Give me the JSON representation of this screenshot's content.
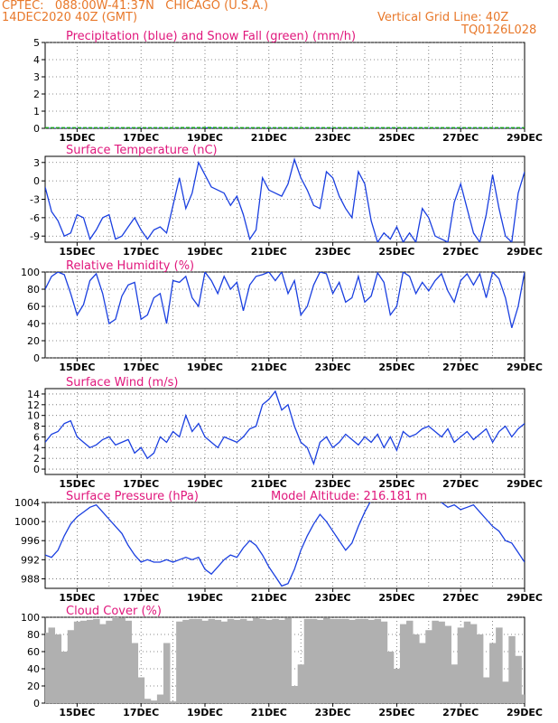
{
  "header": {
    "line1": "CPTEC:   088:00W-41:37N   CHICAGO (U.S.A.)",
    "line2": "14DEC2020 40Z (GMT)",
    "grid_note": "Vertical Grid Line: 40Z",
    "code": "TQ0126L028"
  },
  "x_ticks": [
    "15DEC",
    "17DEC",
    "19DEC",
    "21DEC",
    "23DEC",
    "25DEC",
    "27DEC",
    "29DEC"
  ],
  "colors": {
    "header": "#e8782a",
    "title": "#e0177c",
    "line": "#1a3fe0",
    "snow": "#1aa31a",
    "cloud": "#b0b0b0",
    "axis": "#000000"
  },
  "chart_data": [
    {
      "type": "line",
      "title": "Precipitation (blue) and Snow Fall (green) (mm/h)",
      "ylim": [
        0,
        5
      ],
      "yticks": [
        0,
        1,
        2,
        3,
        4,
        5
      ],
      "series": [
        {
          "name": "Precipitation",
          "color": "#1a3fe0",
          "x": [
            14.0,
            19.0,
            19.1,
            19.3,
            29.0
          ],
          "values": [
            0,
            0,
            0.05,
            0,
            0
          ]
        },
        {
          "name": "Snow Fall",
          "color": "#1aa31a",
          "x": [
            14.0,
            16.0,
            18.0,
            19.2,
            20.0,
            22.0,
            24.0,
            26.0,
            28.0,
            29.0
          ],
          "values": [
            0.02,
            0.02,
            0.02,
            0.03,
            0.02,
            0.02,
            0.02,
            0.02,
            0.02,
            0.02
          ]
        }
      ]
    },
    {
      "type": "line",
      "title": "Surface Temperature (nC)",
      "ylim": [
        -10,
        4
      ],
      "yticks": [
        -9,
        -6,
        -3,
        0,
        3
      ],
      "series": [
        {
          "x": [
            14.0,
            14.2,
            14.4,
            14.6,
            14.8,
            15.0,
            15.2,
            15.4,
            15.6,
            15.8,
            16.0,
            16.2,
            16.4,
            16.6,
            16.8,
            17.0,
            17.2,
            17.4,
            17.6,
            17.8,
            18.0,
            18.2,
            18.4,
            18.6,
            18.8,
            19.0,
            19.2,
            19.4,
            19.6,
            19.8,
            20.0,
            20.2,
            20.4,
            20.6,
            20.8,
            21.0,
            21.2,
            21.4,
            21.6,
            21.8,
            22.0,
            22.2,
            22.4,
            22.6,
            22.8,
            23.0,
            23.2,
            23.4,
            23.6,
            23.8,
            24.0,
            24.2,
            24.4,
            24.6,
            24.8,
            25.0,
            25.2,
            25.4,
            25.6,
            25.8,
            26.0,
            26.2,
            26.4,
            26.6,
            26.8,
            27.0,
            27.2,
            27.4,
            27.6,
            27.8,
            28.0,
            28.2,
            28.4,
            28.6,
            28.8,
            29.0
          ],
          "values": [
            -1.0,
            -5.0,
            -6.5,
            -9.0,
            -8.5,
            -5.5,
            -6.0,
            -9.5,
            -8.0,
            -6.0,
            -5.5,
            -9.5,
            -9.0,
            -7.5,
            -6.0,
            -8.0,
            -9.5,
            -8.0,
            -7.5,
            -8.5,
            -4.0,
            0.5,
            -4.5,
            -2.0,
            3.0,
            1.0,
            -1.0,
            -1.5,
            -2.0,
            -4.0,
            -2.5,
            -5.5,
            -9.5,
            -8.0,
            0.5,
            -1.5,
            -2.0,
            -2.5,
            -0.5,
            3.5,
            0.5,
            -1.5,
            -4.0,
            -4.5,
            1.5,
            0.5,
            -2.5,
            -4.5,
            -6.0,
            1.5,
            -0.5,
            -6.5,
            -10.0,
            -8.5,
            -9.5,
            -7.5,
            -10.0,
            -8.5,
            -10.0,
            -4.5,
            -6.0,
            -9.0,
            -9.5,
            -10.0,
            -3.5,
            -0.5,
            -4.5,
            -8.5,
            -10.0,
            -5.5,
            1.0,
            -4.5,
            -9.0,
            -10.0,
            -2.0,
            1.5
          ]
        }
      ]
    },
    {
      "type": "line",
      "title": "Relative Humidity (%)",
      "ylim": [
        0,
        100
      ],
      "yticks": [
        0,
        20,
        40,
        60,
        80,
        100
      ],
      "series": [
        {
          "x": [
            14.0,
            14.2,
            14.4,
            14.6,
            14.8,
            15.0,
            15.2,
            15.4,
            15.6,
            15.8,
            16.0,
            16.2,
            16.4,
            16.6,
            16.8,
            17.0,
            17.2,
            17.4,
            17.6,
            17.8,
            18.0,
            18.2,
            18.4,
            18.6,
            18.8,
            19.0,
            19.2,
            19.4,
            19.6,
            19.8,
            20.0,
            20.2,
            20.4,
            20.6,
            20.8,
            21.0,
            21.2,
            21.4,
            21.6,
            21.8,
            22.0,
            22.2,
            22.4,
            22.6,
            22.8,
            23.0,
            23.2,
            23.4,
            23.6,
            23.8,
            24.0,
            24.2,
            24.4,
            24.6,
            24.8,
            25.0,
            25.2,
            25.4,
            25.6,
            25.8,
            26.0,
            26.2,
            26.4,
            26.6,
            26.8,
            27.0,
            27.2,
            27.4,
            27.6,
            27.8,
            28.0,
            28.2,
            28.4,
            28.6,
            28.8,
            29.0
          ],
          "values": [
            80,
            95,
            100,
            97,
            75,
            50,
            62,
            90,
            98,
            75,
            40,
            45,
            72,
            85,
            88,
            45,
            50,
            70,
            75,
            40,
            90,
            88,
            95,
            70,
            60,
            100,
            90,
            75,
            95,
            80,
            88,
            55,
            85,
            95,
            97,
            100,
            90,
            100,
            75,
            90,
            50,
            60,
            85,
            100,
            98,
            75,
            88,
            65,
            70,
            95,
            65,
            72,
            99,
            88,
            50,
            60,
            100,
            95,
            75,
            88,
            78,
            90,
            98,
            78,
            65,
            90,
            98,
            85,
            98,
            70,
            100,
            92,
            70,
            35,
            60,
            100
          ]
        }
      ]
    },
    {
      "type": "line",
      "title": "Surface Wind (m/s)",
      "ylim": [
        -1,
        15
      ],
      "yticks": [
        0,
        2,
        4,
        6,
        8,
        10,
        12,
        14
      ],
      "series": [
        {
          "x": [
            14.0,
            14.2,
            14.4,
            14.6,
            14.8,
            15.0,
            15.2,
            15.4,
            15.6,
            15.8,
            16.0,
            16.2,
            16.4,
            16.6,
            16.8,
            17.0,
            17.2,
            17.4,
            17.6,
            17.8,
            18.0,
            18.2,
            18.4,
            18.6,
            18.8,
            19.0,
            19.2,
            19.4,
            19.6,
            19.8,
            20.0,
            20.2,
            20.4,
            20.6,
            20.8,
            21.0,
            21.2,
            21.4,
            21.6,
            21.8,
            22.0,
            22.2,
            22.4,
            22.6,
            22.8,
            23.0,
            23.2,
            23.4,
            23.6,
            23.8,
            24.0,
            24.2,
            24.4,
            24.6,
            24.8,
            25.0,
            25.2,
            25.4,
            25.6,
            25.8,
            26.0,
            26.2,
            26.4,
            26.6,
            26.8,
            27.0,
            27.2,
            27.4,
            27.6,
            27.8,
            28.0,
            28.2,
            28.4,
            28.6,
            28.8,
            29.0
          ],
          "values": [
            5.0,
            6.5,
            7.0,
            8.5,
            9.0,
            6.0,
            5.0,
            4.0,
            4.5,
            5.5,
            6.0,
            4.5,
            5.0,
            5.5,
            3.0,
            4.0,
            2.0,
            3.0,
            6.0,
            5.0,
            7.0,
            6.0,
            10.0,
            7.0,
            8.5,
            6.0,
            5.0,
            4.0,
            6.0,
            5.5,
            5.0,
            6.0,
            7.5,
            8.0,
            12.0,
            13.0,
            14.5,
            11.0,
            12.0,
            8.0,
            5.0,
            4.0,
            1.0,
            5.0,
            6.0,
            4.0,
            5.0,
            6.5,
            5.5,
            4.5,
            6.0,
            5.0,
            6.5,
            4.0,
            6.0,
            3.5,
            7.0,
            6.0,
            6.5,
            7.5,
            8.0,
            7.0,
            6.0,
            7.5,
            5.0,
            6.0,
            7.0,
            5.5,
            6.5,
            7.5,
            5.0,
            7.0,
            8.0,
            6.0,
            7.5,
            8.5
          ]
        }
      ]
    },
    {
      "type": "line",
      "title": "Surface Pressure (hPa)",
      "annotation": "Model Altitude: 216.181 m",
      "ylim": [
        986,
        1004
      ],
      "yticks": [
        988,
        992,
        996,
        1000,
        1004
      ],
      "series": [
        {
          "x": [
            14.0,
            14.2,
            14.4,
            14.6,
            14.8,
            15.0,
            15.2,
            15.4,
            15.6,
            15.8,
            16.0,
            16.2,
            16.4,
            16.6,
            16.8,
            17.0,
            17.2,
            17.4,
            17.6,
            17.8,
            18.0,
            18.2,
            18.4,
            18.6,
            18.8,
            19.0,
            19.2,
            19.4,
            19.6,
            19.8,
            20.0,
            20.2,
            20.4,
            20.6,
            20.8,
            21.0,
            21.2,
            21.4,
            21.6,
            21.8,
            22.0,
            22.2,
            22.4,
            22.6,
            22.8,
            23.0,
            23.2,
            23.4,
            23.6,
            23.8,
            24.0,
            24.2,
            24.4,
            24.6,
            24.8,
            25.0,
            25.2,
            25.4,
            25.6,
            25.8,
            26.0,
            26.2,
            26.4,
            26.6,
            26.8,
            27.0,
            27.2,
            27.4,
            27.6,
            27.8,
            28.0,
            28.2,
            28.4,
            28.6,
            28.8,
            29.0
          ],
          "values": [
            993.0,
            992.5,
            994.0,
            997.0,
            999.5,
            1001.0,
            1002.0,
            1003.0,
            1003.5,
            1002.0,
            1000.5,
            999.0,
            997.5,
            995.0,
            993.0,
            991.5,
            992.0,
            991.5,
            991.5,
            992.0,
            991.5,
            992.0,
            992.5,
            992.0,
            992.5,
            990.0,
            989.0,
            990.5,
            992.0,
            993.0,
            992.5,
            994.5,
            996.0,
            995.0,
            993.0,
            990.5,
            988.5,
            986.5,
            987.0,
            990.0,
            994.0,
            997.0,
            999.5,
            1001.5,
            1000.0,
            998.0,
            996.0,
            994.0,
            995.5,
            999.0,
            1002.0,
            1004.5,
            1005.0,
            1005.0,
            1005.0,
            1005.0,
            1005.0,
            1005.0,
            1005.0,
            1005.0,
            1005.0,
            1005.0,
            1004.0,
            1003.0,
            1003.5,
            1002.5,
            1003.0,
            1003.5,
            1002.0,
            1000.5,
            999.0,
            998.0,
            996.0,
            995.5,
            993.5,
            991.5
          ]
        }
      ]
    },
    {
      "type": "bar",
      "title": "Cloud Cover (%)",
      "ylim": [
        0,
        100
      ],
      "yticks": [
        0,
        20,
        40,
        60,
        80,
        100
      ],
      "x": [
        14.0,
        14.2,
        14.4,
        14.6,
        14.8,
        15.0,
        15.2,
        15.4,
        15.6,
        15.8,
        16.0,
        16.2,
        16.4,
        16.6,
        16.8,
        17.0,
        17.2,
        17.4,
        17.6,
        17.8,
        18.0,
        18.2,
        18.4,
        18.6,
        18.8,
        19.0,
        19.2,
        19.4,
        19.6,
        19.8,
        20.0,
        20.2,
        20.4,
        20.6,
        20.8,
        21.0,
        21.2,
        21.4,
        21.6,
        21.8,
        22.0,
        22.2,
        22.4,
        22.6,
        22.8,
        23.0,
        23.2,
        23.4,
        23.6,
        23.8,
        24.0,
        24.2,
        24.4,
        24.6,
        24.8,
        25.0,
        25.2,
        25.4,
        25.6,
        25.8,
        26.0,
        26.2,
        26.4,
        26.6,
        26.8,
        27.0,
        27.2,
        27.4,
        27.6,
        27.8,
        28.0,
        28.2,
        28.4,
        28.6,
        28.8,
        29.0
      ],
      "values": [
        82,
        88,
        80,
        60,
        85,
        95,
        96,
        97,
        98,
        92,
        96,
        100,
        99,
        96,
        70,
        30,
        5,
        3,
        10,
        70,
        2,
        95,
        97,
        98,
        98,
        96,
        98,
        97,
        95,
        98,
        97,
        98,
        96,
        99,
        98,
        97,
        98,
        97,
        99,
        20,
        45,
        98,
        98,
        97,
        99,
        98,
        98,
        98,
        97,
        98,
        98,
        97,
        98,
        95,
        60,
        40,
        92,
        96,
        80,
        70,
        85,
        96,
        95,
        90,
        45,
        88,
        95,
        92,
        80,
        30,
        70,
        88,
        25,
        78,
        55,
        10
      ]
    }
  ]
}
